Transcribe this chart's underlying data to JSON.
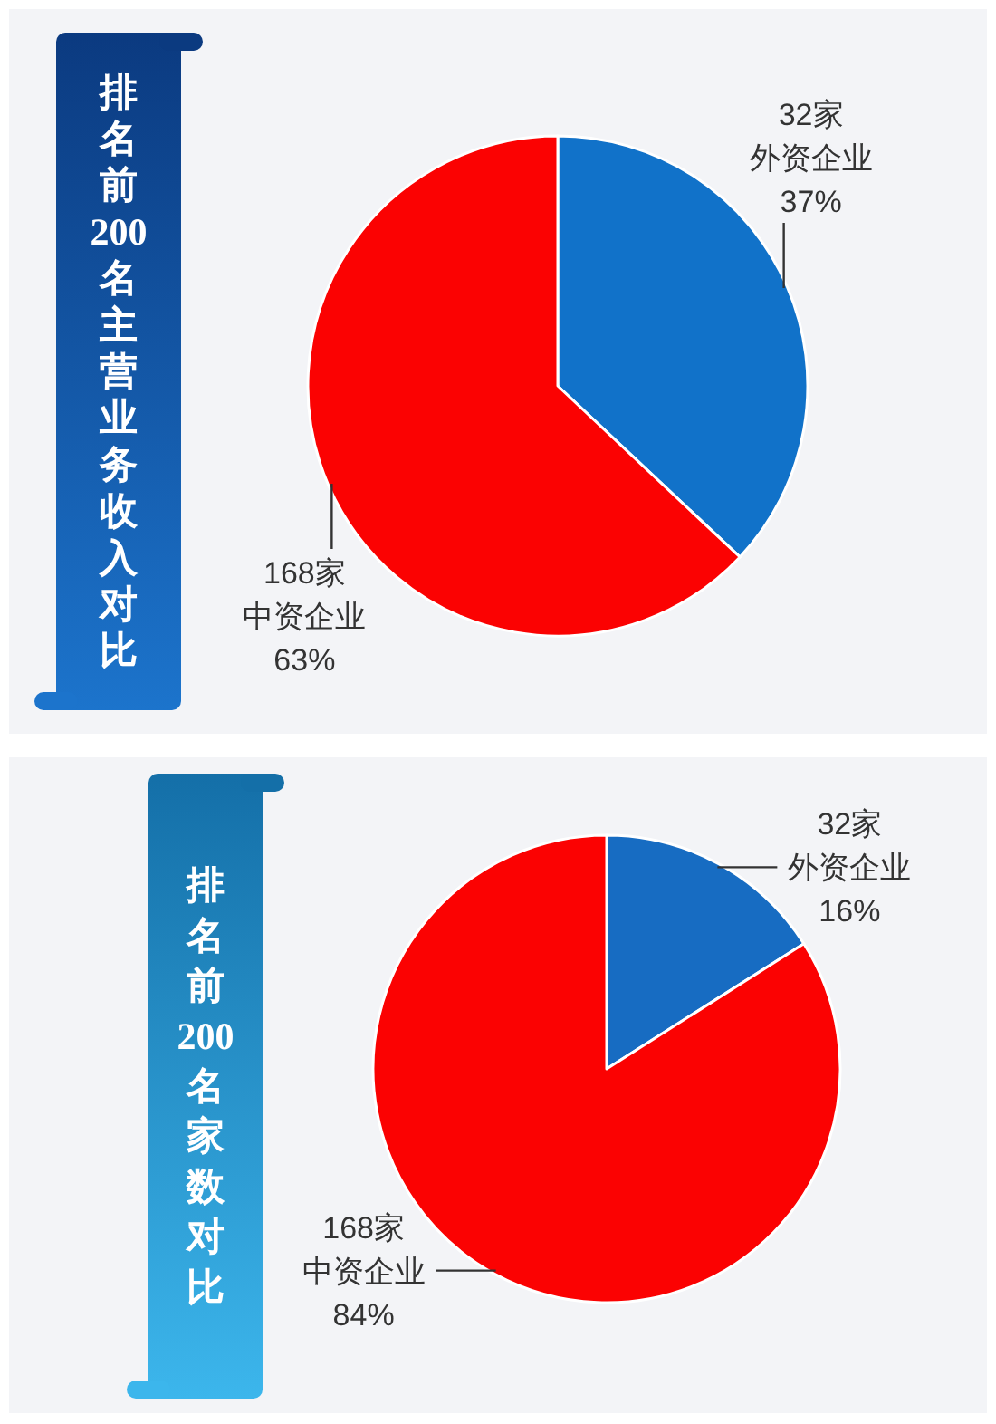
{
  "chart_data": [
    {
      "type": "pie",
      "title": "排名前200名主营业务收入对比",
      "categories": [
        "32家外资企业",
        "168家中资企业"
      ],
      "values": [
        37,
        63
      ],
      "value_labels": [
        "37%",
        "63%"
      ],
      "colors": [
        "#1172c9",
        "#fb0202"
      ]
    },
    {
      "type": "pie",
      "title": "排名前200名家数对比",
      "categories": [
        "32家外资企业",
        "168家中资企业"
      ],
      "values": [
        16,
        84
      ],
      "value_labels": [
        "16%",
        "84%"
      ],
      "colors": [
        "#176cc2",
        "#fb0202"
      ]
    }
  ]
}
